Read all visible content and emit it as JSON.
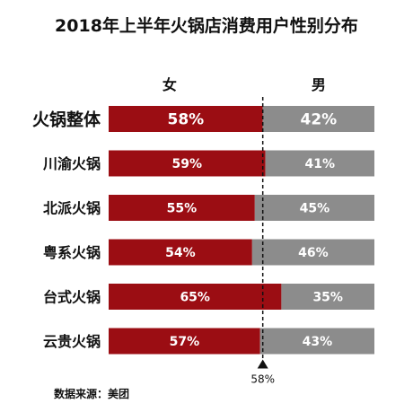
{
  "chart_data": {
    "type": "bar",
    "stacked": true,
    "orientation": "horizontal",
    "title": "2018年上半年火锅店消费用户性别分布",
    "categories": [
      "火锅整体",
      "川渝火锅",
      "北派火锅",
      "粤系火锅",
      "台式火锅",
      "云贵火锅"
    ],
    "series": [
      {
        "name": "女",
        "values": [
          58,
          59,
          55,
          54,
          65,
          57
        ],
        "labels": [
          "58%",
          "59%",
          "55%",
          "54%",
          "65%",
          "57%"
        ],
        "color": "#9b0d13"
      },
      {
        "name": "男",
        "values": [
          42,
          41,
          45,
          46,
          35,
          43
        ],
        "labels": [
          "42%",
          "41%",
          "45%",
          "46%",
          "35%",
          "43%"
        ],
        "color": "#8c8c8c"
      }
    ],
    "reference": {
      "value": 58,
      "label": "58%"
    },
    "xlim": [
      0,
      100
    ],
    "source": "数据来源：美团"
  }
}
